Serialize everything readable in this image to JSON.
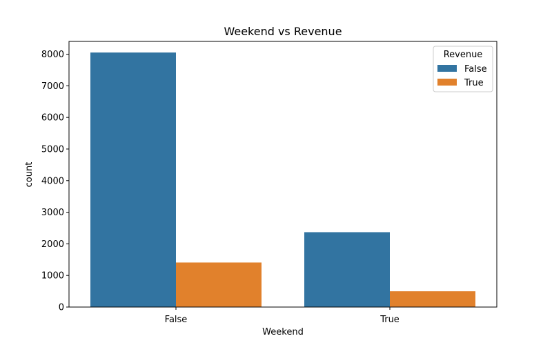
{
  "chart_data": {
    "type": "bar",
    "title": "Weekend vs Revenue",
    "xlabel": "Weekend",
    "ylabel": "count",
    "categories": [
      "False",
      "True"
    ],
    "series": [
      {
        "name": "False",
        "values": [
          8053,
          2369
        ],
        "color": "#3274a1"
      },
      {
        "name": "True",
        "values": [
          1409,
          499
        ],
        "color": "#e1812c"
      }
    ],
    "ylim": [
      0,
      8405
    ],
    "yticks": [
      0,
      1000,
      2000,
      3000,
      4000,
      5000,
      6000,
      7000,
      8000
    ],
    "legend": {
      "title": "Revenue",
      "placement": "top-right"
    },
    "grid": false
  }
}
